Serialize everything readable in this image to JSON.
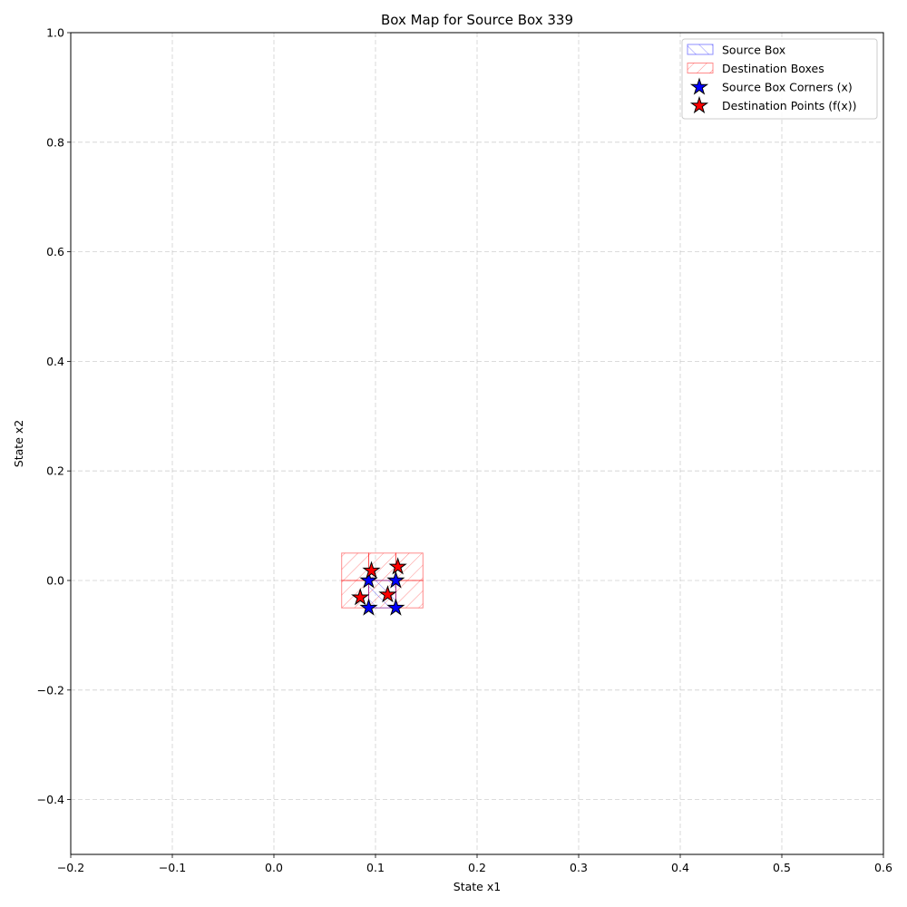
{
  "chart_data": {
    "type": "scatter",
    "title": "Box Map for Source Box 339",
    "xlabel": "State x1",
    "ylabel": "State x2",
    "xlim": [
      -0.2,
      0.6
    ],
    "ylim": [
      -0.5,
      1.0
    ],
    "xticks": [
      -0.2,
      -0.1,
      0.0,
      0.1,
      0.2,
      0.3,
      0.4,
      0.5,
      0.6
    ],
    "yticks": [
      -0.4,
      -0.2,
      0.0,
      0.2,
      0.4,
      0.6,
      0.8,
      1.0
    ],
    "xtick_labels": [
      "−0.2",
      "−0.1",
      "0.0",
      "0.1",
      "0.2",
      "0.3",
      "0.4",
      "0.5",
      "0.6"
    ],
    "ytick_labels": [
      "−0.4",
      "−0.2",
      "0.0",
      "0.2",
      "0.4",
      "0.6",
      "0.8",
      "1.0"
    ],
    "grid": true,
    "legend_position": "top-right",
    "legend": [
      {
        "label": "Source Box",
        "kind": "hatch-box",
        "color": "#0000ff"
      },
      {
        "label": "Destination Boxes",
        "kind": "hatch-box",
        "color": "#ff0000"
      },
      {
        "label": "Source Box Corners (x)",
        "kind": "star",
        "color": "#0000ff"
      },
      {
        "label": "Destination Points (f(x))",
        "kind": "star",
        "color": "#ff0000"
      }
    ],
    "source_box": {
      "x": [
        0.0933,
        0.12
      ],
      "y": [
        -0.05,
        0.0
      ]
    },
    "destination_boxes": [
      {
        "x": [
          0.0667,
          0.0933
        ],
        "y": [
          -0.05,
          0.0
        ]
      },
      {
        "x": [
          0.0933,
          0.12
        ],
        "y": [
          -0.05,
          0.0
        ]
      },
      {
        "x": [
          0.12,
          0.1467
        ],
        "y": [
          -0.05,
          0.0
        ]
      },
      {
        "x": [
          0.0667,
          0.0933
        ],
        "y": [
          0.0,
          0.05
        ]
      },
      {
        "x": [
          0.0933,
          0.12
        ],
        "y": [
          0.0,
          0.05
        ]
      },
      {
        "x": [
          0.12,
          0.1467
        ],
        "y": [
          0.0,
          0.05
        ]
      }
    ],
    "source_corners": [
      {
        "x": 0.0933,
        "y": 0.0
      },
      {
        "x": 0.12,
        "y": 0.0
      },
      {
        "x": 0.0933,
        "y": -0.05
      },
      {
        "x": 0.12,
        "y": -0.05
      }
    ],
    "destination_points": [
      {
        "x": 0.096,
        "y": 0.018
      },
      {
        "x": 0.122,
        "y": 0.025
      },
      {
        "x": 0.085,
        "y": -0.031
      },
      {
        "x": 0.112,
        "y": -0.026
      }
    ],
    "colors": {
      "source": "#0000ff",
      "destination": "#ff0000",
      "grid": "#b0b0b0"
    }
  }
}
